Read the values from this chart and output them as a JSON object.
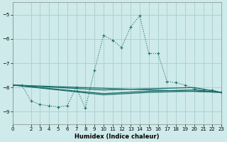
{
  "xlabel": "Humidex (Indice chaleur)",
  "bg_color": "#ceeaea",
  "grid_color": "#aacece",
  "line_color": "#1a6e6a",
  "xlim": [
    0,
    23
  ],
  "ylim": [
    -9.5,
    -4.5
  ],
  "yticks": [
    -9,
    -8,
    -7,
    -6,
    -5
  ],
  "xticks": [
    0,
    2,
    3,
    4,
    5,
    6,
    7,
    8,
    9,
    10,
    11,
    12,
    13,
    14,
    15,
    16,
    17,
    18,
    19,
    20,
    21,
    22,
    23
  ],
  "main_x": [
    0,
    1,
    2,
    3,
    4,
    5,
    6,
    7,
    8,
    9,
    10,
    11,
    12,
    13,
    14,
    15,
    16,
    17,
    18,
    19,
    20,
    21,
    22,
    23
  ],
  "main_y": [
    -7.9,
    -7.9,
    -8.55,
    -8.7,
    -8.75,
    -8.8,
    -8.75,
    -8.0,
    -8.85,
    -7.3,
    -5.85,
    -6.05,
    -6.35,
    -5.5,
    -5.05,
    -6.6,
    -6.6,
    -7.75,
    -7.8,
    -7.9,
    -8.05,
    -8.1,
    -8.1,
    -8.2
  ],
  "line1_x": [
    0,
    23
  ],
  "line1_y": [
    -7.9,
    -8.2
  ],
  "line2_x": [
    0,
    10,
    15,
    20,
    23
  ],
  "line2_y": [
    -7.9,
    -8.1,
    -8.05,
    -8.0,
    -8.2
  ],
  "line3_x": [
    0,
    10,
    15,
    20,
    23
  ],
  "line3_y": [
    -7.9,
    -8.25,
    -8.15,
    -8.1,
    -8.2
  ],
  "line4_x": [
    0,
    10,
    15,
    20,
    23
  ],
  "line4_y": [
    -7.9,
    -8.3,
    -8.2,
    -8.15,
    -8.2
  ]
}
